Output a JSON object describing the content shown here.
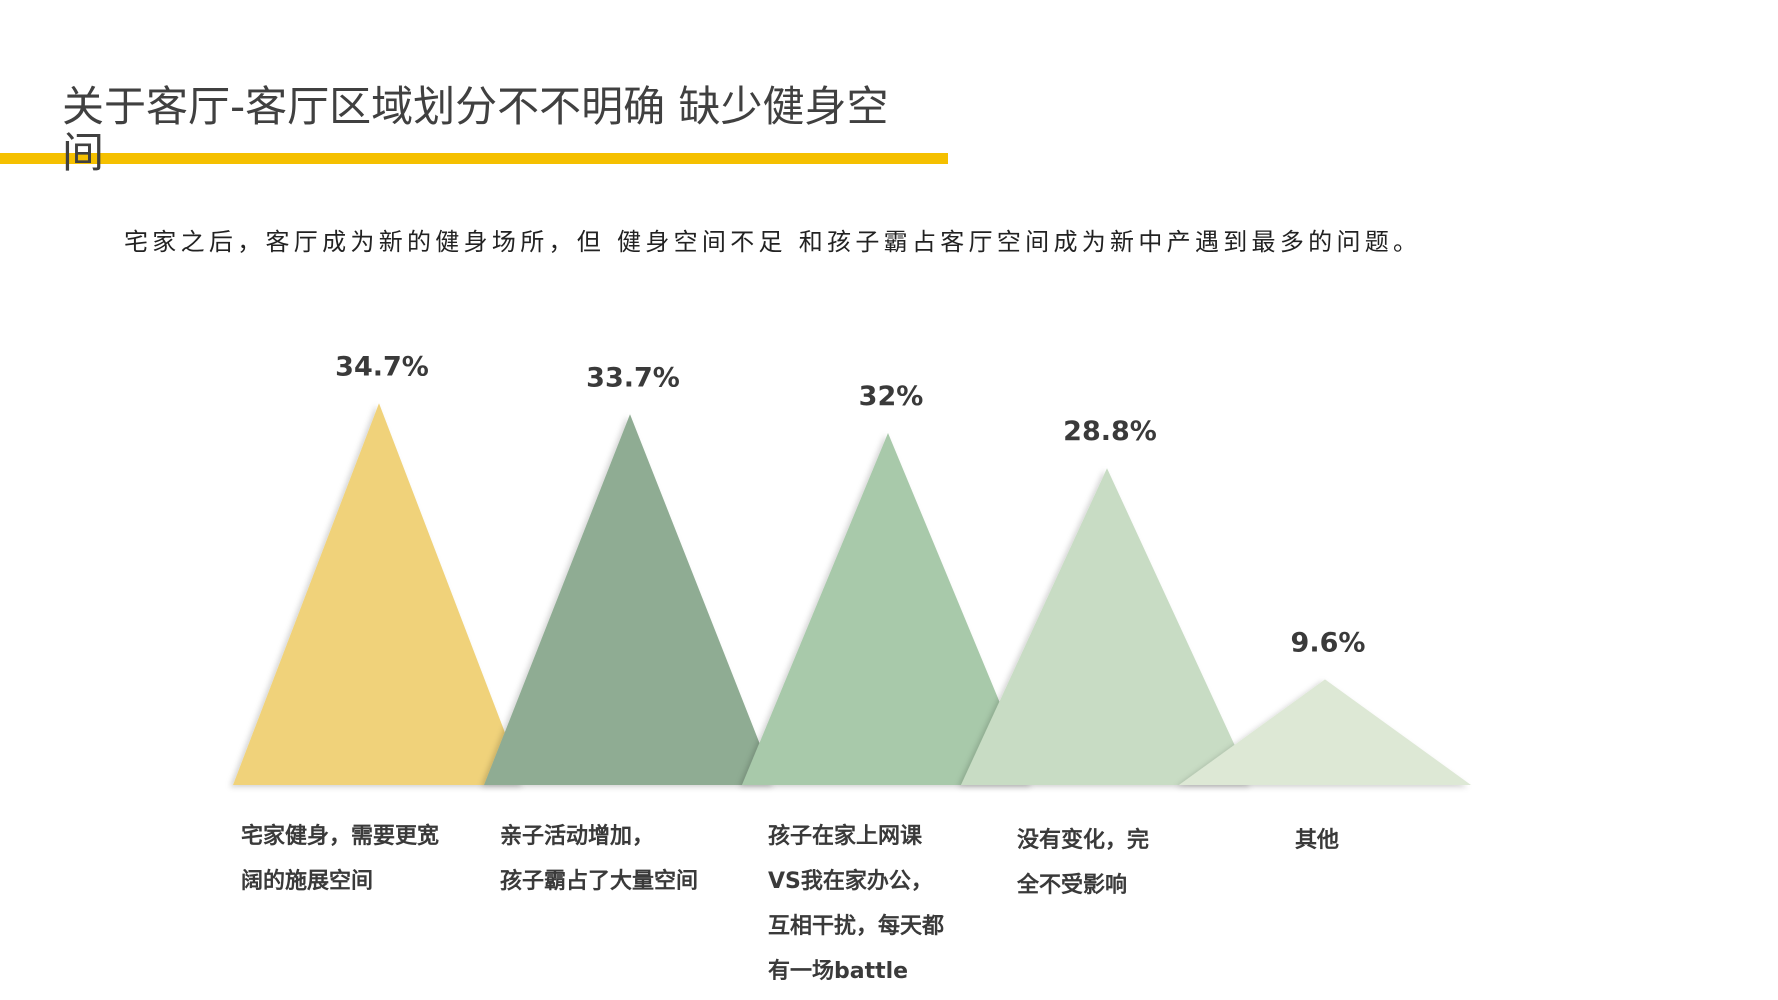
{
  "header": {
    "title": "关于客厅-客厅区域划分不不明确 缺少健身空间",
    "subtitle": "宅家之后，客厅成为新的健身场所，但 健身空间不足 和孩子霸占客厅空间成为新中产遇到最多的问题。"
  },
  "chart_data": {
    "type": "triangle",
    "categories": [
      "宅家健身，需要更宽\n阔的施展空间",
      "亲子活动增加，\n孩子霸占了大量空间",
      "孩子在家上网课\nVS我在家办公，\n互相干扰，每天都\n有一场battle",
      "没有变化，完\n全不受影响",
      "其他"
    ],
    "values": [
      34.7,
      33.7,
      32,
      28.8,
      9.6
    ],
    "value_labels": [
      "34.7%",
      "33.7%",
      "32%",
      "28.8%",
      "9.6%"
    ],
    "colors": [
      "#f0d27a",
      "#8fac93",
      "#a8c9aa",
      "#c8dcc4",
      "#dde8d5"
    ]
  }
}
